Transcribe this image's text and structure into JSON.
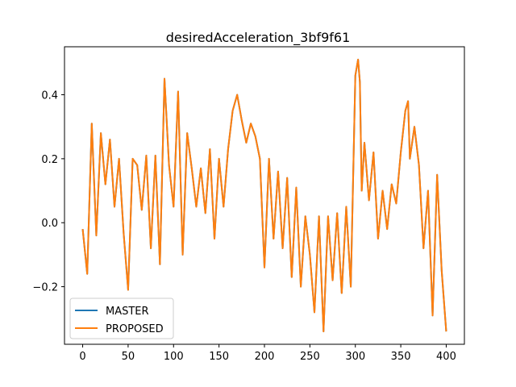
{
  "chart_data": {
    "type": "line",
    "title": "desiredAcceleration_3bf9f61",
    "xlabel": "",
    "ylabel": "",
    "xlim": [
      -20,
      420
    ],
    "ylim": [
      -0.38,
      0.55
    ],
    "x_ticks": [
      0,
      50,
      100,
      150,
      200,
      250,
      300,
      350,
      400
    ],
    "x_tick_labels": [
      "0",
      "50",
      "100",
      "150",
      "200",
      "250",
      "300",
      "350",
      "400"
    ],
    "y_ticks": [
      -0.2,
      0.0,
      0.2,
      0.4
    ],
    "y_tick_labels": [
      "−0.2",
      "0.0",
      "0.2",
      "0.4"
    ],
    "grid": false,
    "legend_position": "lower-left",
    "x": [
      0,
      5,
      10,
      15,
      20,
      25,
      30,
      35,
      40,
      45,
      50,
      55,
      60,
      65,
      70,
      75,
      80,
      85,
      90,
      95,
      100,
      105,
      110,
      115,
      120,
      125,
      130,
      135,
      140,
      145,
      150,
      155,
      160,
      165,
      170,
      175,
      180,
      185,
      190,
      195,
      200,
      205,
      210,
      215,
      220,
      225,
      230,
      235,
      240,
      245,
      250,
      255,
      260,
      265,
      268,
      270,
      275,
      280,
      285,
      290,
      295,
      300,
      303,
      305,
      307,
      310,
      315,
      320,
      325,
      330,
      335,
      340,
      345,
      350,
      355,
      358,
      360,
      365,
      370,
      375,
      380,
      385,
      390,
      395,
      400
    ],
    "series": [
      {
        "name": "MASTER",
        "color": "#1f77b4",
        "values": [
          -0.02,
          -0.16,
          0.31,
          -0.04,
          0.28,
          0.12,
          0.26,
          0.05,
          0.2,
          -0.03,
          -0.21,
          0.2,
          0.18,
          0.04,
          0.21,
          -0.08,
          0.21,
          -0.13,
          0.45,
          0.18,
          0.05,
          0.41,
          -0.1,
          0.28,
          0.17,
          0.05,
          0.17,
          0.03,
          0.23,
          -0.05,
          0.2,
          0.05,
          0.23,
          0.35,
          0.4,
          0.32,
          0.25,
          0.31,
          0.27,
          0.2,
          -0.14,
          0.2,
          -0.05,
          0.16,
          -0.08,
          0.14,
          -0.17,
          0.11,
          -0.2,
          0.02,
          -0.1,
          -0.28,
          0.02,
          -0.34,
          -0.12,
          0.02,
          -0.18,
          0.03,
          -0.22,
          0.05,
          -0.2,
          0.46,
          0.51,
          0.44,
          0.1,
          0.25,
          0.07,
          0.22,
          -0.05,
          0.1,
          -0.02,
          0.12,
          0.06,
          0.22,
          0.35,
          0.38,
          0.2,
          0.3,
          0.18,
          -0.08,
          0.1,
          -0.29,
          0.15,
          -0.15,
          -0.34
        ]
      },
      {
        "name": "PROPOSED",
        "color": "#ff7f0e",
        "values": [
          -0.02,
          -0.16,
          0.31,
          -0.04,
          0.28,
          0.12,
          0.26,
          0.05,
          0.2,
          -0.03,
          -0.21,
          0.2,
          0.18,
          0.04,
          0.21,
          -0.08,
          0.21,
          -0.13,
          0.45,
          0.18,
          0.05,
          0.41,
          -0.1,
          0.28,
          0.17,
          0.05,
          0.17,
          0.03,
          0.23,
          -0.05,
          0.2,
          0.05,
          0.23,
          0.35,
          0.4,
          0.32,
          0.25,
          0.31,
          0.27,
          0.2,
          -0.14,
          0.2,
          -0.05,
          0.16,
          -0.08,
          0.14,
          -0.17,
          0.11,
          -0.2,
          0.02,
          -0.1,
          -0.28,
          0.02,
          -0.34,
          -0.12,
          0.02,
          -0.18,
          0.03,
          -0.22,
          0.05,
          -0.2,
          0.46,
          0.51,
          0.44,
          0.1,
          0.25,
          0.07,
          0.22,
          -0.05,
          0.1,
          -0.02,
          0.12,
          0.06,
          0.22,
          0.35,
          0.38,
          0.2,
          0.3,
          0.18,
          -0.08,
          0.1,
          -0.29,
          0.15,
          -0.15,
          -0.34
        ]
      }
    ]
  }
}
